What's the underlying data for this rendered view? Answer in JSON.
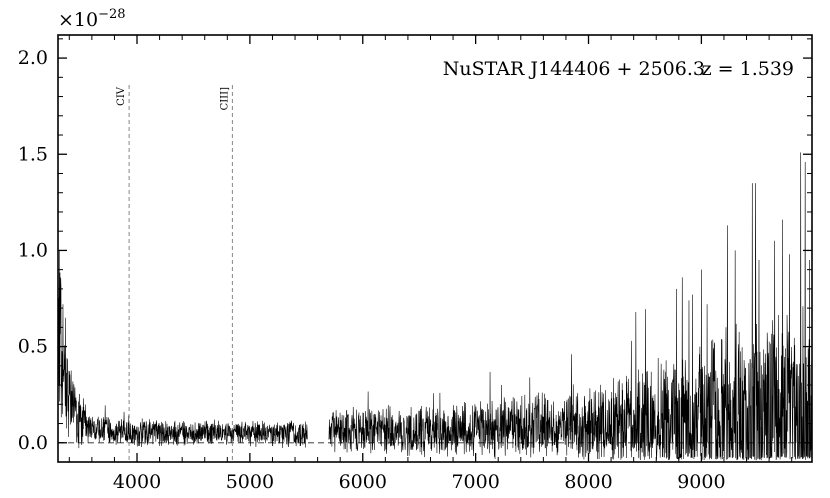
{
  "chart_data": {
    "type": "line",
    "title": "",
    "xlabel": "",
    "ylabel": "",
    "xlim": [
      3300,
      9980
    ],
    "ylim": [
      -0.1,
      2.12
    ],
    "y_scale_label": {
      "base": "×10",
      "exponent": "−28"
    },
    "x_ticks": [
      4000,
      5000,
      6000,
      7000,
      8000,
      9000
    ],
    "x_tick_labels": [
      "4000",
      "5000",
      "6000",
      "7000",
      "8000",
      "9000"
    ],
    "y_ticks": [
      0.0,
      0.5,
      1.0,
      1.5,
      2.0
    ],
    "y_tick_labels": [
      "0.0",
      "0.5",
      "1.0",
      "1.5",
      "2.0"
    ],
    "annotation": {
      "object": "NuSTAR J144406 + 2506.3",
      "redshift": "z = 1.539"
    },
    "emission_lines": [
      {
        "name": "CIV",
        "wavelength": 3930
      },
      {
        "name": "CIII]",
        "wavelength": 4845
      }
    ],
    "zero_line": 0.0,
    "gap": [
      5510,
      5700
    ],
    "series": [
      {
        "noise_envelope": [
          [
            3300,
            0.45
          ],
          [
            3400,
            0.2
          ],
          [
            3600,
            0.07
          ],
          [
            4000,
            0.065
          ],
          [
            5000,
            0.06
          ],
          [
            5500,
            0.07
          ],
          [
            5700,
            0.1
          ],
          [
            6500,
            0.12
          ],
          [
            7000,
            0.14
          ],
          [
            7500,
            0.15
          ],
          [
            8000,
            0.18
          ],
          [
            8500,
            0.27
          ],
          [
            9000,
            0.38
          ],
          [
            9500,
            0.5
          ],
          [
            9980,
            0.55
          ]
        ],
        "continuum": [
          [
            3300,
            0.55
          ],
          [
            3350,
            0.35
          ],
          [
            3450,
            0.15
          ],
          [
            3600,
            0.07
          ],
          [
            4000,
            0.05
          ],
          [
            5500,
            0.05
          ],
          [
            5700,
            0.06
          ],
          [
            7000,
            0.07
          ],
          [
            8000,
            0.09
          ],
          [
            9000,
            0.12
          ],
          [
            9980,
            0.15
          ]
        ],
        "peaks": [
          [
            3310,
            1.0
          ],
          [
            3345,
            0.72
          ],
          [
            3365,
            0.65
          ],
          [
            7230,
            0.3
          ],
          [
            7480,
            0.34
          ],
          [
            7850,
            0.46
          ],
          [
            8380,
            0.53
          ],
          [
            8420,
            0.68
          ],
          [
            8780,
            0.8
          ],
          [
            8830,
            0.86
          ],
          [
            8890,
            0.74
          ],
          [
            8920,
            0.77
          ],
          [
            9000,
            0.9
          ],
          [
            9050,
            0.72
          ],
          [
            9230,
            1.13
          ],
          [
            9300,
            1.0
          ],
          [
            9450,
            1.35
          ],
          [
            9480,
            1.35
          ],
          [
            9510,
            0.95
          ],
          [
            9650,
            1.05
          ],
          [
            9720,
            1.16
          ],
          [
            9780,
            0.98
          ],
          [
            9880,
            1.51
          ],
          [
            9920,
            1.46
          ],
          [
            9960,
            0.95
          ]
        ]
      }
    ]
  }
}
